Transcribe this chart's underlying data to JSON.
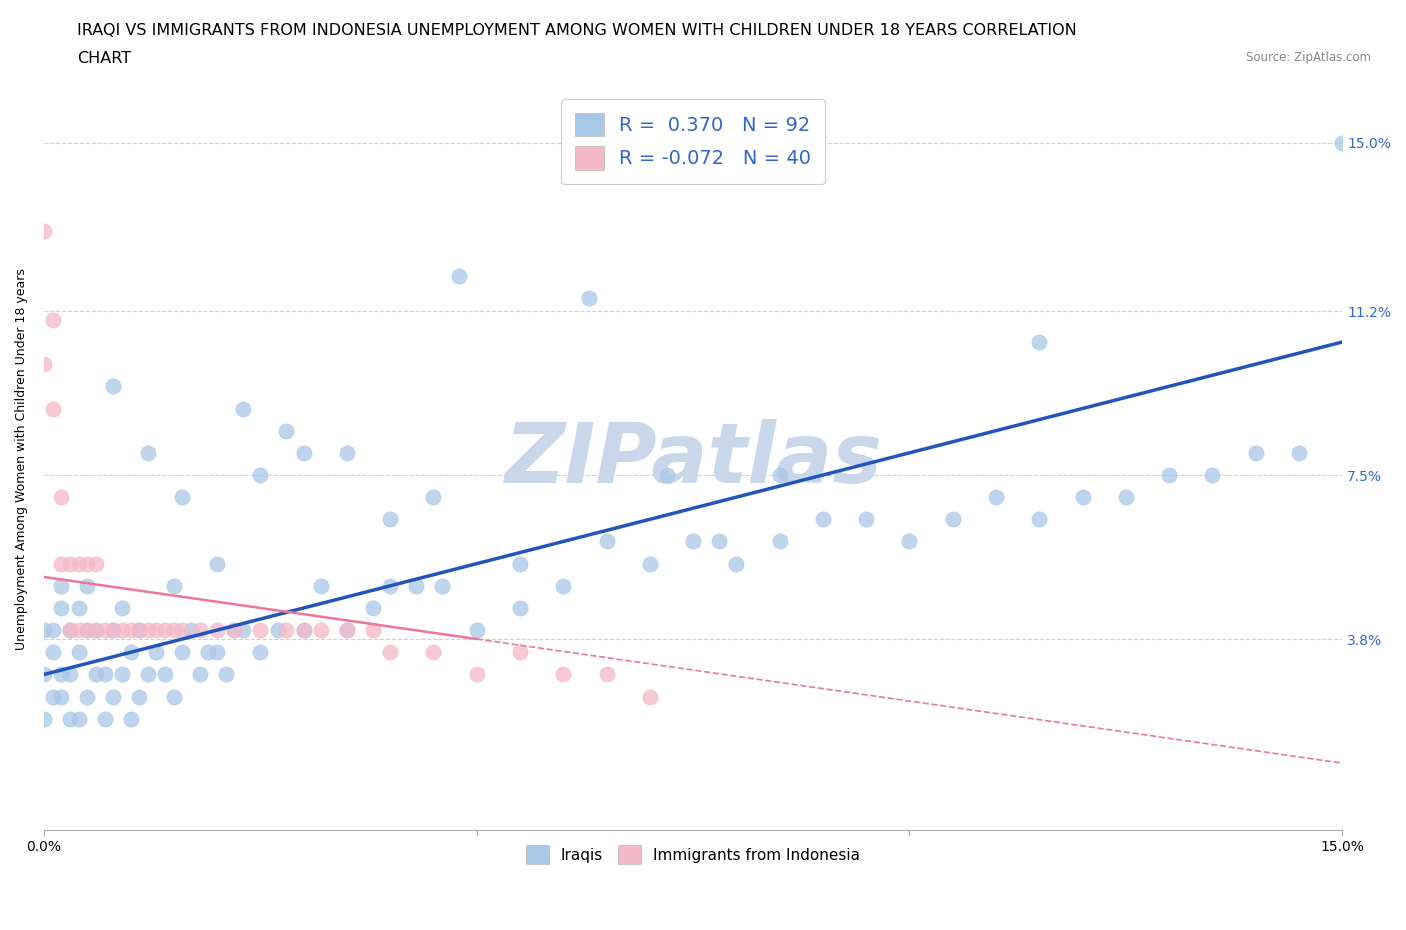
{
  "title_line1": "IRAQI VS IMMIGRANTS FROM INDONESIA UNEMPLOYMENT AMONG WOMEN WITH CHILDREN UNDER 18 YEARS CORRELATION",
  "title_line2": "CHART",
  "source": "Source: ZipAtlas.com",
  "ylabel": "Unemployment Among Women with Children Under 18 years",
  "x_min": 0.0,
  "x_max": 0.15,
  "y_min": -0.005,
  "y_max": 0.162,
  "yticks": [
    0.038,
    0.075,
    0.112,
    0.15
  ],
  "ytick_labels": [
    "3.8%",
    "7.5%",
    "11.2%",
    "15.0%"
  ],
  "xticks": [
    0.0,
    0.05,
    0.1,
    0.15
  ],
  "xtick_labels": [
    "0.0%",
    "",
    "",
    "15.0%"
  ],
  "grid_color": "#d0d0d0",
  "watermark": "ZIPatlas",
  "watermark_color": "#c8d8ea",
  "blue_dot_color": "#a8c8e8",
  "pink_dot_color": "#f4b8c8",
  "blue_line_color": "#2255bb",
  "pink_line_color": "#ee7799",
  "legend_text_color": "#3366cc",
  "blue_trend_y_start": 0.03,
  "blue_trend_y_end": 0.105,
  "pink_trend_solid_x_end": 0.05,
  "pink_trend_y_start": 0.052,
  "pink_trend_y_end": 0.01,
  "iraqis_x": [
    0.0,
    0.0,
    0.0,
    0.001,
    0.001,
    0.001,
    0.002,
    0.002,
    0.002,
    0.002,
    0.003,
    0.003,
    0.003,
    0.004,
    0.004,
    0.004,
    0.005,
    0.005,
    0.005,
    0.006,
    0.006,
    0.007,
    0.007,
    0.008,
    0.008,
    0.009,
    0.009,
    0.01,
    0.01,
    0.011,
    0.011,
    0.012,
    0.013,
    0.014,
    0.015,
    0.016,
    0.017,
    0.018,
    0.019,
    0.02,
    0.021,
    0.022,
    0.023,
    0.025,
    0.027,
    0.03,
    0.032,
    0.035,
    0.038,
    0.04,
    0.043,
    0.046,
    0.05,
    0.055,
    0.06,
    0.065,
    0.07,
    0.075,
    0.08,
    0.085,
    0.09,
    0.095,
    0.1,
    0.105,
    0.11,
    0.115,
    0.12,
    0.125,
    0.13,
    0.135,
    0.14,
    0.145,
    0.15,
    0.055,
    0.063,
    0.115,
    0.048,
    0.072,
    0.078,
    0.085,
    0.025,
    0.03,
    0.035,
    0.04,
    0.045,
    0.015,
    0.02,
    0.008,
    0.012,
    0.016,
    0.023,
    0.028
  ],
  "iraqis_y": [
    0.02,
    0.03,
    0.04,
    0.025,
    0.035,
    0.04,
    0.025,
    0.03,
    0.045,
    0.05,
    0.02,
    0.03,
    0.04,
    0.02,
    0.035,
    0.045,
    0.025,
    0.04,
    0.05,
    0.03,
    0.04,
    0.02,
    0.03,
    0.025,
    0.04,
    0.03,
    0.045,
    0.02,
    0.035,
    0.025,
    0.04,
    0.03,
    0.035,
    0.03,
    0.025,
    0.035,
    0.04,
    0.03,
    0.035,
    0.035,
    0.03,
    0.04,
    0.04,
    0.035,
    0.04,
    0.04,
    0.05,
    0.04,
    0.045,
    0.05,
    0.05,
    0.05,
    0.04,
    0.055,
    0.05,
    0.06,
    0.055,
    0.06,
    0.055,
    0.06,
    0.065,
    0.065,
    0.06,
    0.065,
    0.07,
    0.065,
    0.07,
    0.07,
    0.075,
    0.075,
    0.08,
    0.08,
    0.15,
    0.045,
    0.115,
    0.105,
    0.12,
    0.075,
    0.06,
    0.075,
    0.075,
    0.08,
    0.08,
    0.065,
    0.07,
    0.05,
    0.055,
    0.095,
    0.08,
    0.07,
    0.09,
    0.085
  ],
  "indonesia_x": [
    0.0,
    0.0,
    0.001,
    0.001,
    0.002,
    0.002,
    0.003,
    0.003,
    0.004,
    0.004,
    0.005,
    0.005,
    0.006,
    0.006,
    0.007,
    0.008,
    0.009,
    0.01,
    0.011,
    0.012,
    0.013,
    0.014,
    0.015,
    0.016,
    0.018,
    0.02,
    0.022,
    0.025,
    0.028,
    0.03,
    0.032,
    0.035,
    0.038,
    0.04,
    0.045,
    0.05,
    0.055,
    0.06,
    0.065,
    0.07
  ],
  "indonesia_y": [
    0.1,
    0.13,
    0.09,
    0.11,
    0.055,
    0.07,
    0.04,
    0.055,
    0.04,
    0.055,
    0.04,
    0.055,
    0.04,
    0.055,
    0.04,
    0.04,
    0.04,
    0.04,
    0.04,
    0.04,
    0.04,
    0.04,
    0.04,
    0.04,
    0.04,
    0.04,
    0.04,
    0.04,
    0.04,
    0.04,
    0.04,
    0.04,
    0.04,
    0.035,
    0.035,
    0.03,
    0.035,
    0.03,
    0.03,
    0.025
  ],
  "title_fontsize": 11.5,
  "axis_label_fontsize": 9,
  "tick_fontsize": 10,
  "legend_fontsize": 14,
  "watermark_fontsize": 60
}
